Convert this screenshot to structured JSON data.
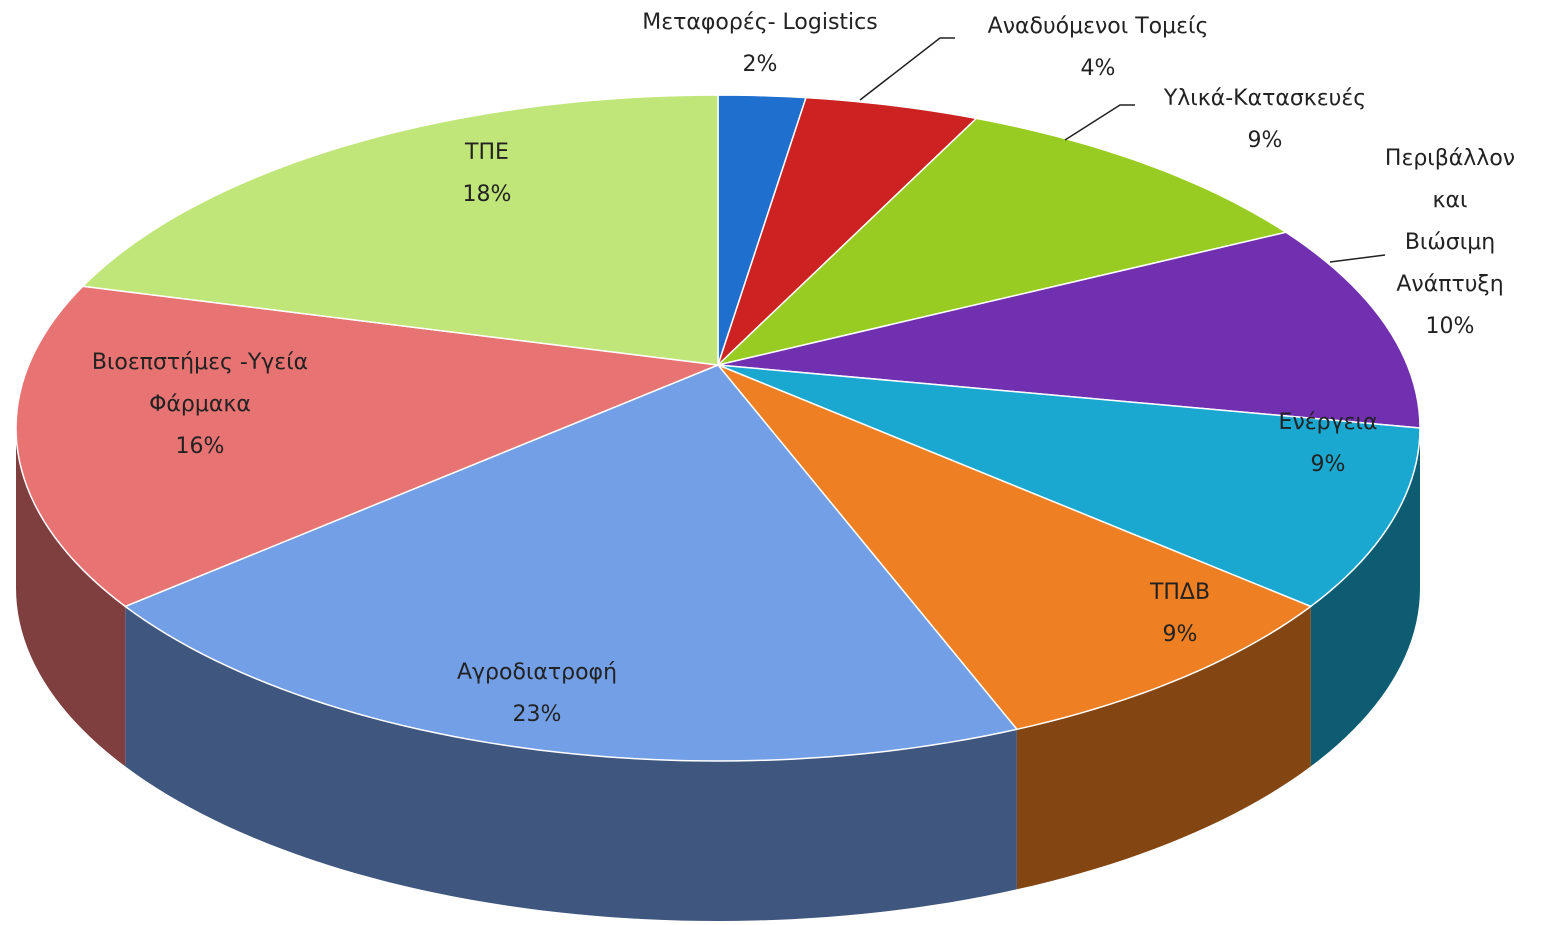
{
  "chart_data": {
    "type": "pie",
    "categories": [
      "Μεταφορές- Logistics",
      "Αναδυόμενοι Τομείς",
      "Υλικά-Κατασκευές",
      "Περιβάλλον και\nΒιώσιμη\nΑνάπτυξη",
      "Ενέργεια",
      "ΤΠΔΒ",
      "Αγροδιατροφή",
      "Βιοεπστήμες -Υγεία\nΦάρμακα",
      "ΤΠΕ"
    ],
    "values": [
      2,
      4,
      9,
      10,
      9,
      9,
      23,
      16,
      18
    ],
    "value_labels": [
      "2%",
      "4%",
      "9%",
      "10%",
      "9%",
      "9%",
      "23%",
      "16%",
      "18%"
    ],
    "colors": [
      "#1f6fcf",
      "#cc2222",
      "#99cc22",
      "#7030b0",
      "#1aa8d0",
      "#ee7f22",
      "#739fe6",
      "#e87373",
      "#c0e67a"
    ]
  }
}
